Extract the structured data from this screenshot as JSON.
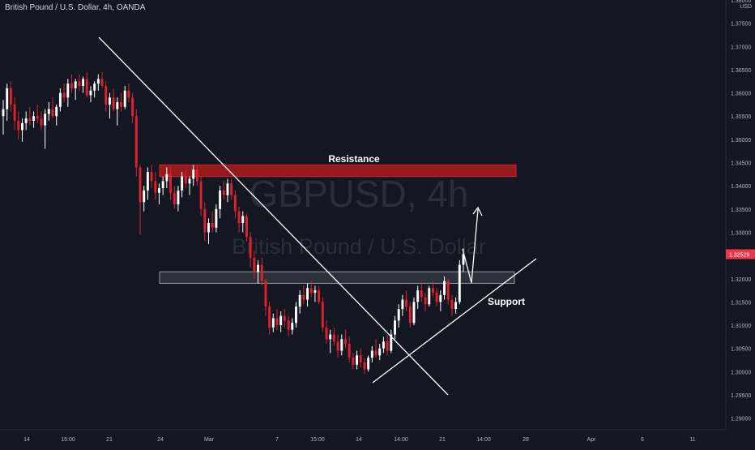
{
  "header": {
    "symbol_title": "British Pound / U.S. Dollar, 4h, OANDA",
    "currency": "USD"
  },
  "watermark": {
    "ticker": "GBPUSD, 4h",
    "name": "British Pound / U.S. Dollar"
  },
  "colors": {
    "background": "#131722",
    "bull": "#ffffff",
    "bear": "#e0202c",
    "resistance_zone": "#b71c1c",
    "support_zone": "#5d606b",
    "price_tag": "#f23645",
    "axis_text": "#b2b5be",
    "watermark": "#2a2e39"
  },
  "chart_data": {
    "type": "candlestick",
    "title": "British Pound / U.S. Dollar, 4h, OANDA",
    "y_axis": {
      "unit": "USD",
      "range": [
        1.2875,
        1.38
      ],
      "ticks": [
        "1.38000",
        "1.37500",
        "1.37000",
        "1.36500",
        "1.36000",
        "1.35500",
        "1.35000",
        "1.34500",
        "1.34000",
        "1.33500",
        "1.33000",
        "1.32500",
        "1.32000",
        "1.31500",
        "1.31000",
        "1.30500",
        "1.30000",
        "1.29500",
        "1.29000"
      ]
    },
    "x_axis": {
      "ticks": [
        "14",
        "15:00",
        "21",
        "24",
        "Mar",
        "7",
        "15:00",
        "14",
        "14:00",
        "21",
        "14:00",
        "28",
        "Apr",
        "6",
        "11"
      ]
    },
    "last_price": "1.32529",
    "candles": [
      [
        1.355,
        1.3585,
        1.351,
        1.3565
      ],
      [
        1.3565,
        1.362,
        1.354,
        1.361
      ],
      [
        1.361,
        1.3625,
        1.356,
        1.3575
      ],
      [
        1.3575,
        1.359,
        1.352,
        1.354
      ],
      [
        1.354,
        1.356,
        1.35,
        1.352
      ],
      [
        1.352,
        1.3545,
        1.3495,
        1.3535
      ],
      [
        1.3535,
        1.356,
        1.352,
        1.3545
      ],
      [
        1.3545,
        1.357,
        1.353,
        1.354
      ],
      [
        1.354,
        1.356,
        1.3525,
        1.355
      ],
      [
        1.355,
        1.3575,
        1.3535,
        1.3545
      ],
      [
        1.3545,
        1.356,
        1.352,
        1.353
      ],
      [
        1.353,
        1.3565,
        1.348,
        1.3555
      ],
      [
        1.3555,
        1.358,
        1.354,
        1.3565
      ],
      [
        1.3565,
        1.359,
        1.3545,
        1.355
      ],
      [
        1.355,
        1.3575,
        1.353,
        1.357
      ],
      [
        1.357,
        1.361,
        1.356,
        1.36
      ],
      [
        1.36,
        1.362,
        1.358,
        1.359
      ],
      [
        1.359,
        1.363,
        1.357,
        1.362
      ],
      [
        1.362,
        1.364,
        1.36,
        1.361
      ],
      [
        1.361,
        1.363,
        1.3585,
        1.3625
      ],
      [
        1.3625,
        1.364,
        1.3605,
        1.3615
      ],
      [
        1.3615,
        1.3635,
        1.36,
        1.363
      ],
      [
        1.363,
        1.3645,
        1.359,
        1.3595
      ],
      [
        1.3595,
        1.3615,
        1.358,
        1.3605
      ],
      [
        1.3605,
        1.3625,
        1.359,
        1.362
      ],
      [
        1.362,
        1.364,
        1.3605,
        1.363
      ],
      [
        1.363,
        1.3645,
        1.361,
        1.3615
      ],
      [
        1.3615,
        1.3625,
        1.356,
        1.3575
      ],
      [
        1.3575,
        1.36,
        1.3545,
        1.359
      ],
      [
        1.359,
        1.361,
        1.356,
        1.3565
      ],
      [
        1.3565,
        1.359,
        1.353,
        1.358
      ],
      [
        1.358,
        1.36,
        1.356,
        1.357
      ],
      [
        1.357,
        1.3615,
        1.3565,
        1.3605
      ],
      [
        1.3605,
        1.362,
        1.358,
        1.359
      ],
      [
        1.359,
        1.36,
        1.3535,
        1.355
      ],
      [
        1.355,
        1.3565,
        1.342,
        1.344
      ],
      [
        1.344,
        1.3445,
        1.3295,
        1.3365
      ],
      [
        1.3365,
        1.34,
        1.3345,
        1.339
      ],
      [
        1.339,
        1.344,
        1.337,
        1.343
      ],
      [
        1.343,
        1.3445,
        1.3395,
        1.341
      ],
      [
        1.341,
        1.343,
        1.337,
        1.3385
      ],
      [
        1.3385,
        1.3405,
        1.336,
        1.3395
      ],
      [
        1.3395,
        1.342,
        1.338,
        1.341
      ],
      [
        1.341,
        1.344,
        1.3395,
        1.3425
      ],
      [
        1.3425,
        1.344,
        1.337,
        1.3385
      ],
      [
        1.3385,
        1.34,
        1.335,
        1.336
      ],
      [
        1.336,
        1.34,
        1.3345,
        1.339
      ],
      [
        1.339,
        1.343,
        1.3375,
        1.342
      ],
      [
        1.342,
        1.3435,
        1.3395,
        1.3405
      ],
      [
        1.3405,
        1.342,
        1.338,
        1.3415
      ],
      [
        1.3415,
        1.3445,
        1.34,
        1.3435
      ],
      [
        1.3435,
        1.3445,
        1.34,
        1.341
      ],
      [
        1.341,
        1.342,
        1.3335,
        1.335
      ],
      [
        1.335,
        1.3365,
        1.328,
        1.33
      ],
      [
        1.33,
        1.333,
        1.3275,
        1.332
      ],
      [
        1.332,
        1.3345,
        1.33,
        1.331
      ],
      [
        1.331,
        1.336,
        1.33,
        1.335
      ],
      [
        1.335,
        1.34,
        1.333,
        1.339
      ],
      [
        1.339,
        1.341,
        1.337,
        1.338
      ],
      [
        1.338,
        1.3415,
        1.3365,
        1.3405
      ],
      [
        1.3405,
        1.3415,
        1.337,
        1.338
      ],
      [
        1.338,
        1.339,
        1.333,
        1.3345
      ],
      [
        1.3345,
        1.3355,
        1.33,
        1.332
      ],
      [
        1.332,
        1.3345,
        1.33,
        1.3335
      ],
      [
        1.3335,
        1.334,
        1.328,
        1.329
      ],
      [
        1.329,
        1.33,
        1.3225,
        1.3245
      ],
      [
        1.3245,
        1.326,
        1.32,
        1.3215
      ],
      [
        1.3215,
        1.324,
        1.319,
        1.323
      ],
      [
        1.323,
        1.3245,
        1.3185,
        1.3195
      ],
      [
        1.3195,
        1.32,
        1.312,
        1.314
      ],
      [
        1.314,
        1.315,
        1.308,
        1.3095
      ],
      [
        1.3095,
        1.3125,
        1.3085,
        1.3115
      ],
      [
        1.3115,
        1.3135,
        1.309,
        1.31
      ],
      [
        1.31,
        1.313,
        1.3085,
        1.312
      ],
      [
        1.312,
        1.3135,
        1.3095,
        1.311
      ],
      [
        1.311,
        1.312,
        1.3075,
        1.309
      ],
      [
        1.309,
        1.3115,
        1.308,
        1.3105
      ],
      [
        1.3105,
        1.315,
        1.3095,
        1.314
      ],
      [
        1.314,
        1.3175,
        1.3125,
        1.3165
      ],
      [
        1.3165,
        1.3185,
        1.3145,
        1.3155
      ],
      [
        1.3155,
        1.319,
        1.314,
        1.318
      ],
      [
        1.318,
        1.3195,
        1.316,
        1.317
      ],
      [
        1.317,
        1.3185,
        1.315,
        1.3175
      ],
      [
        1.3175,
        1.3185,
        1.3145,
        1.315
      ],
      [
        1.315,
        1.316,
        1.3085,
        1.3095
      ],
      [
        1.3095,
        1.311,
        1.306,
        1.307
      ],
      [
        1.307,
        1.309,
        1.304,
        1.308
      ],
      [
        1.308,
        1.3095,
        1.3055,
        1.3065
      ],
      [
        1.3065,
        1.308,
        1.303,
        1.3045
      ],
      [
        1.3045,
        1.308,
        1.3035,
        1.307
      ],
      [
        1.307,
        1.309,
        1.305,
        1.306
      ],
      [
        1.306,
        1.3075,
        1.302,
        1.303
      ],
      [
        1.303,
        1.304,
        1.3005,
        1.3015
      ],
      [
        1.3015,
        1.3045,
        1.3005,
        1.3035
      ],
      [
        1.3035,
        1.305,
        1.301,
        1.302
      ],
      [
        1.302,
        1.303,
        1.2995,
        1.3005
      ],
      [
        1.3005,
        1.3035,
        1.3,
        1.303
      ],
      [
        1.303,
        1.3055,
        1.302,
        1.3045
      ],
      [
        1.3045,
        1.307,
        1.303,
        1.3035
      ],
      [
        1.3035,
        1.306,
        1.3025,
        1.305
      ],
      [
        1.305,
        1.3075,
        1.304,
        1.3065
      ],
      [
        1.3065,
        1.308,
        1.3035,
        1.3045
      ],
      [
        1.3045,
        1.309,
        1.304,
        1.308
      ],
      [
        1.308,
        1.312,
        1.307,
        1.311
      ],
      [
        1.311,
        1.3145,
        1.3095,
        1.3135
      ],
      [
        1.3135,
        1.3165,
        1.312,
        1.3155
      ],
      [
        1.3155,
        1.3175,
        1.313,
        1.314
      ],
      [
        1.314,
        1.315,
        1.3095,
        1.3105
      ],
      [
        1.3105,
        1.316,
        1.31,
        1.315
      ],
      [
        1.315,
        1.3185,
        1.3135,
        1.3175
      ],
      [
        1.3175,
        1.319,
        1.315,
        1.316
      ],
      [
        1.316,
        1.317,
        1.313,
        1.3145
      ],
      [
        1.3145,
        1.3185,
        1.314,
        1.318
      ],
      [
        1.318,
        1.3195,
        1.316,
        1.317
      ],
      [
        1.317,
        1.318,
        1.314,
        1.315
      ],
      [
        1.315,
        1.3175,
        1.313,
        1.3165
      ],
      [
        1.3165,
        1.3205,
        1.3155,
        1.3195
      ],
      [
        1.3195,
        1.32,
        1.3145,
        1.3155
      ],
      [
        1.3155,
        1.3165,
        1.312,
        1.3135
      ],
      [
        1.3135,
        1.316,
        1.3125,
        1.315
      ],
      [
        1.315,
        1.324,
        1.3145,
        1.323
      ],
      [
        1.323,
        1.3265,
        1.3215,
        1.3253
      ]
    ],
    "annotations": {
      "resistance_label": "Resistance",
      "support_label": "Support",
      "resistance_zone": [
        1.342,
        1.3445
      ],
      "support_zone": [
        1.319,
        1.3215
      ]
    }
  }
}
